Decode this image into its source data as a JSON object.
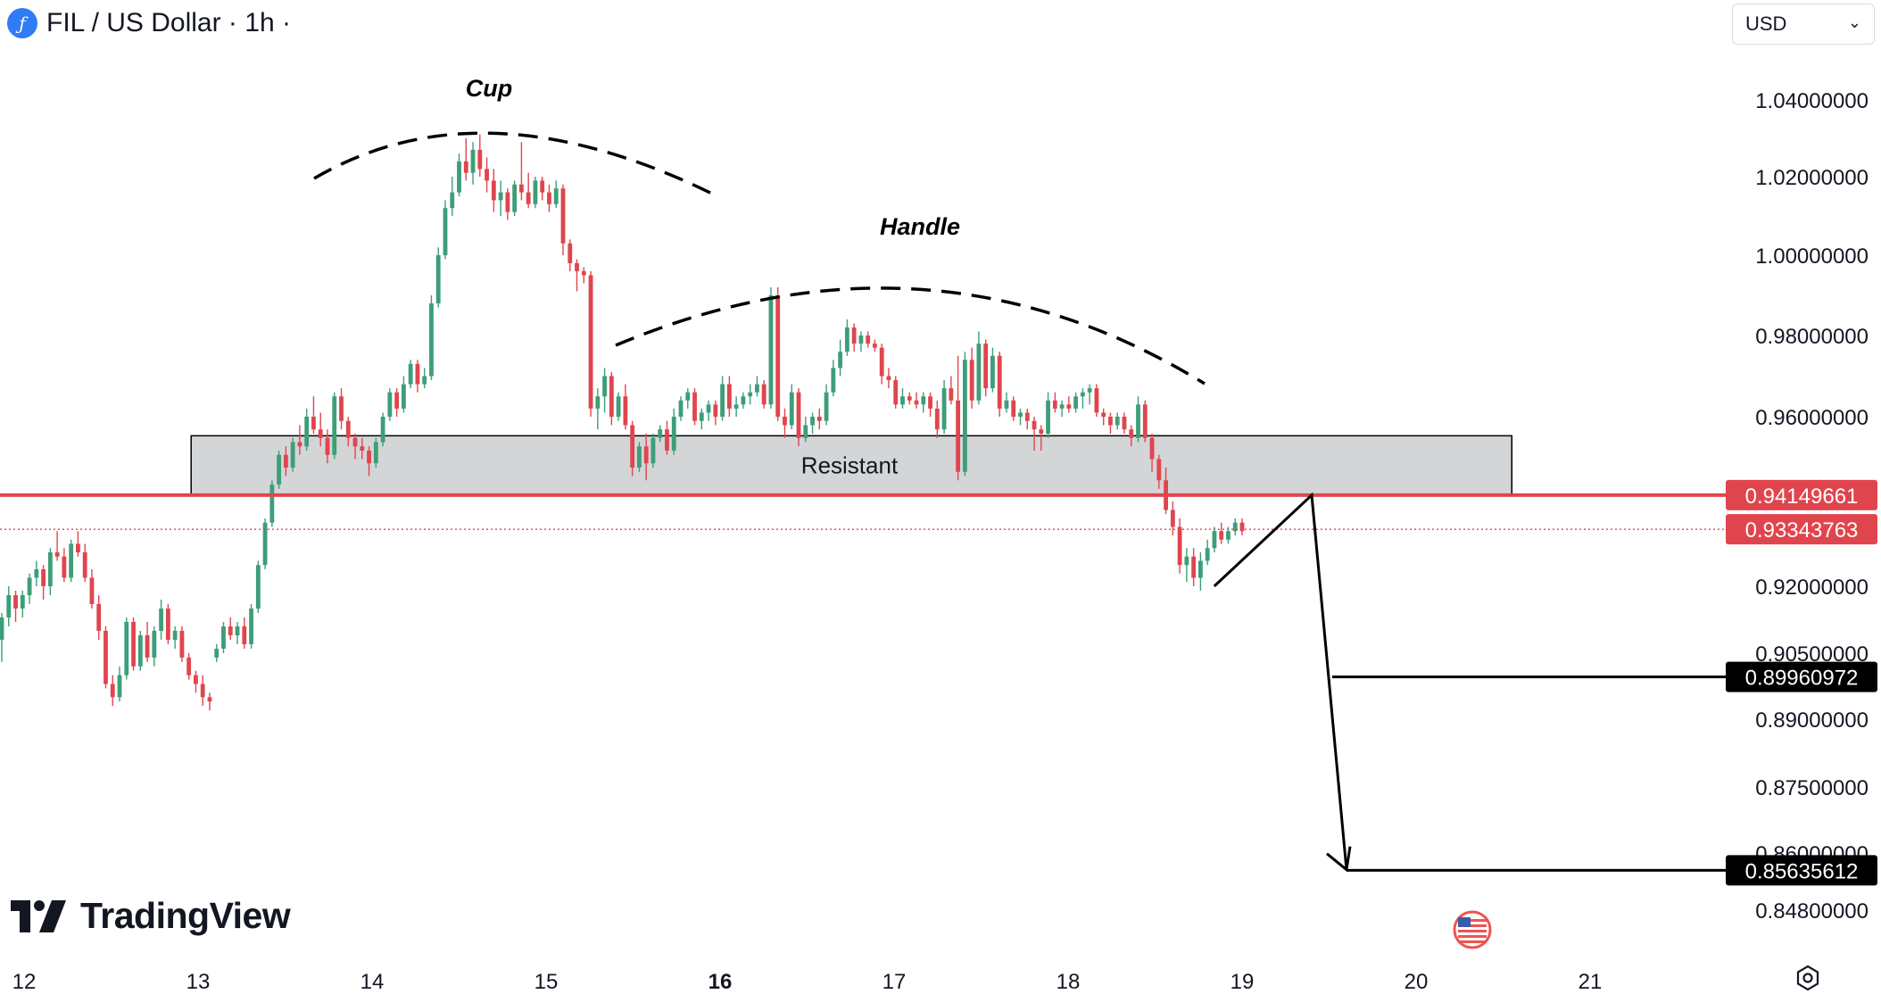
{
  "header": {
    "coin_icon": "filecoin-icon",
    "coin_glyph": "ƒ",
    "title": "FIL / US Dollar · 1h ·"
  },
  "currency_select": {
    "value": "USD"
  },
  "brand": {
    "logo": "tradingview-logo",
    "text": "TradingView"
  },
  "settings": {
    "icon": "gear-icon"
  },
  "colors": {
    "up": "#26a69a",
    "up_body": "#3d9e78",
    "down": "#ef5350",
    "down_body": "#e0454d",
    "price_line": "#e0454d",
    "zone_fill": "#d4d5d7",
    "annotation": "#000000"
  },
  "chart_data": {
    "type": "candlestick",
    "title": "FIL / US Dollar · 1h",
    "x_axis": {
      "labels": [
        "12",
        "13",
        "14",
        "15",
        "16",
        "17",
        "18",
        "19",
        "20",
        "21"
      ],
      "bold": [
        "16"
      ]
    },
    "y_axis": {
      "labels": [
        "1.04000000",
        "1.02000000",
        "1.00000000",
        "0.98000000",
        "0.96000000",
        "0.92000000",
        "0.90500000",
        "0.89000000",
        "0.87500000",
        "0.86000000",
        "0.84800000"
      ],
      "values": [
        1.04,
        1.02,
        1.0,
        0.98,
        0.96,
        0.92,
        0.905,
        0.89,
        0.875,
        0.86,
        0.848
      ]
    },
    "price_tags": [
      {
        "value": "0.94149661",
        "style": "red"
      },
      {
        "value": "0.93343763",
        "style": "red"
      },
      {
        "value": "0.89960972",
        "style": "black"
      },
      {
        "value": "0.85635612",
        "style": "black"
      }
    ],
    "annotations": {
      "cup": "Cup",
      "handle": "Handle",
      "resistance_zone": {
        "label": "Resistant",
        "top": 0.9555,
        "bottom": 0.9415,
        "from_day": 12.96,
        "to_day": 20.55
      },
      "target_1": 0.89960972,
      "target_2": 0.85635612,
      "projection_path": [
        [
          18.84,
          0.92
        ],
        [
          19.4,
          0.9415
        ],
        [
          19.6,
          0.8565
        ]
      ]
    },
    "candles": [
      [
        0.908,
        0.914,
        0.903,
        0.913
      ],
      [
        0.913,
        0.92,
        0.911,
        0.918
      ],
      [
        0.918,
        0.919,
        0.912,
        0.915
      ],
      [
        0.915,
        0.919,
        0.913,
        0.918
      ],
      [
        0.918,
        0.923,
        0.916,
        0.922
      ],
      [
        0.922,
        0.926,
        0.92,
        0.924
      ],
      [
        0.924,
        0.925,
        0.917,
        0.92
      ],
      [
        0.92,
        0.929,
        0.918,
        0.928
      ],
      [
        0.928,
        0.933,
        0.926,
        0.927
      ],
      [
        0.927,
        0.929,
        0.921,
        0.922
      ],
      [
        0.922,
        0.931,
        0.921,
        0.93
      ],
      [
        0.93,
        0.933,
        0.927,
        0.928
      ],
      [
        0.928,
        0.93,
        0.921,
        0.922
      ],
      [
        0.922,
        0.924,
        0.915,
        0.916
      ],
      [
        0.916,
        0.918,
        0.908,
        0.91
      ],
      [
        0.91,
        0.911,
        0.897,
        0.898
      ],
      [
        0.898,
        0.9,
        0.893,
        0.895
      ],
      [
        0.895,
        0.902,
        0.894,
        0.9
      ],
      [
        0.9,
        0.913,
        0.899,
        0.912
      ],
      [
        0.912,
        0.913,
        0.901,
        0.902
      ],
      [
        0.902,
        0.91,
        0.901,
        0.909
      ],
      [
        0.909,
        0.912,
        0.903,
        0.904
      ],
      [
        0.904,
        0.911,
        0.902,
        0.91
      ],
      [
        0.91,
        0.917,
        0.908,
        0.915
      ],
      [
        0.915,
        0.916,
        0.907,
        0.908
      ],
      [
        0.908,
        0.911,
        0.906,
        0.91
      ],
      [
        0.91,
        0.911,
        0.903,
        0.904
      ],
      [
        0.904,
        0.905,
        0.899,
        0.9
      ],
      [
        0.9,
        0.901,
        0.896,
        0.898
      ],
      [
        0.898,
        0.9,
        0.893,
        0.895
      ],
      [
        0.895,
        0.896,
        0.892,
        0.894
      ],
      [
        0.904,
        0.907,
        0.903,
        0.906
      ],
      [
        0.906,
        0.912,
        0.905,
        0.911
      ],
      [
        0.911,
        0.913,
        0.908,
        0.909
      ],
      [
        0.909,
        0.912,
        0.907,
        0.911
      ],
      [
        0.911,
        0.913,
        0.906,
        0.907
      ],
      [
        0.907,
        0.916,
        0.906,
        0.915
      ],
      [
        0.915,
        0.926,
        0.914,
        0.925
      ],
      [
        0.925,
        0.936,
        0.924,
        0.935
      ],
      [
        0.935,
        0.945,
        0.934,
        0.944
      ],
      [
        0.944,
        0.952,
        0.943,
        0.951
      ],
      [
        0.951,
        0.953,
        0.946,
        0.948
      ],
      [
        0.948,
        0.955,
        0.947,
        0.954
      ],
      [
        0.954,
        0.958,
        0.951,
        0.953
      ],
      [
        0.953,
        0.962,
        0.952,
        0.96
      ],
      [
        0.96,
        0.965,
        0.956,
        0.957
      ],
      [
        0.957,
        0.961,
        0.953,
        0.955
      ],
      [
        0.955,
        0.957,
        0.949,
        0.951
      ],
      [
        0.951,
        0.966,
        0.95,
        0.965
      ],
      [
        0.965,
        0.967,
        0.957,
        0.959
      ],
      [
        0.959,
        0.96,
        0.953,
        0.955
      ],
      [
        0.955,
        0.956,
        0.95,
        0.953
      ],
      [
        0.953,
        0.955,
        0.95,
        0.952
      ],
      [
        0.952,
        0.953,
        0.946,
        0.949
      ],
      [
        0.949,
        0.955,
        0.948,
        0.954
      ],
      [
        0.954,
        0.961,
        0.953,
        0.96
      ],
      [
        0.96,
        0.967,
        0.959,
        0.966
      ],
      [
        0.966,
        0.967,
        0.96,
        0.962
      ],
      [
        0.962,
        0.97,
        0.961,
        0.968
      ],
      [
        0.968,
        0.974,
        0.967,
        0.973
      ],
      [
        0.973,
        0.974,
        0.966,
        0.968
      ],
      [
        0.968,
        0.972,
        0.967,
        0.97
      ],
      [
        0.97,
        0.99,
        0.969,
        0.988
      ],
      [
        0.988,
        1.002,
        0.987,
        1.0
      ],
      [
        1.0,
        1.014,
        0.999,
        1.012
      ],
      [
        1.012,
        1.02,
        1.01,
        1.016
      ],
      [
        1.016,
        1.026,
        1.015,
        1.024
      ],
      [
        1.024,
        1.03,
        1.019,
        1.021
      ],
      [
        1.021,
        1.029,
        1.018,
        1.027
      ],
      [
        1.027,
        1.031,
        1.02,
        1.022
      ],
      [
        1.022,
        1.025,
        1.016,
        1.019
      ],
      [
        1.019,
        1.022,
        1.011,
        1.014
      ],
      [
        1.014,
        1.019,
        1.01,
        1.016
      ],
      [
        1.016,
        1.017,
        1.009,
        1.011
      ],
      [
        1.011,
        1.019,
        1.01,
        1.018
      ],
      [
        1.018,
        1.029,
        1.014,
        1.016
      ],
      [
        1.016,
        1.021,
        1.012,
        1.013
      ],
      [
        1.013,
        1.02,
        1.012,
        1.019
      ],
      [
        1.019,
        1.02,
        1.014,
        1.016
      ],
      [
        1.016,
        1.018,
        1.011,
        1.013
      ],
      [
        1.013,
        1.019,
        1.012,
        1.017
      ],
      [
        1.017,
        1.018,
        1.0,
        1.003
      ],
      [
        1.003,
        1.004,
        0.996,
        0.998
      ],
      [
        0.998,
        0.999,
        0.991,
        0.996
      ],
      [
        0.996,
        0.997,
        0.993,
        0.995
      ],
      [
        0.995,
        0.996,
        0.96,
        0.962
      ],
      [
        0.962,
        0.967,
        0.957,
        0.965
      ],
      [
        0.965,
        0.972,
        0.961,
        0.97
      ],
      [
        0.97,
        0.971,
        0.958,
        0.96
      ],
      [
        0.96,
        0.966,
        0.959,
        0.965
      ],
      [
        0.965,
        0.968,
        0.957,
        0.958
      ],
      [
        0.958,
        0.959,
        0.946,
        0.948
      ],
      [
        0.948,
        0.954,
        0.947,
        0.953
      ],
      [
        0.953,
        0.956,
        0.945,
        0.949
      ],
      [
        0.949,
        0.956,
        0.948,
        0.955
      ],
      [
        0.955,
        0.958,
        0.954,
        0.957
      ],
      [
        0.957,
        0.959,
        0.951,
        0.952
      ],
      [
        0.952,
        0.962,
        0.951,
        0.96
      ],
      [
        0.96,
        0.965,
        0.959,
        0.964
      ],
      [
        0.964,
        0.967,
        0.962,
        0.966
      ],
      [
        0.966,
        0.967,
        0.958,
        0.959
      ],
      [
        0.959,
        0.962,
        0.957,
        0.961
      ],
      [
        0.961,
        0.964,
        0.959,
        0.963
      ],
      [
        0.963,
        0.964,
        0.958,
        0.96
      ],
      [
        0.96,
        0.97,
        0.959,
        0.968
      ],
      [
        0.968,
        0.97,
        0.96,
        0.962
      ],
      [
        0.962,
        0.965,
        0.96,
        0.963
      ],
      [
        0.963,
        0.966,
        0.962,
        0.965
      ],
      [
        0.965,
        0.968,
        0.963,
        0.966
      ],
      [
        0.966,
        0.97,
        0.965,
        0.968
      ],
      [
        0.968,
        0.969,
        0.962,
        0.963
      ],
      [
        0.963,
        0.992,
        0.962,
        0.99
      ],
      [
        0.99,
        0.992,
        0.959,
        0.96
      ],
      [
        0.96,
        0.962,
        0.955,
        0.958
      ],
      [
        0.958,
        0.968,
        0.957,
        0.966
      ],
      [
        0.966,
        0.967,
        0.953,
        0.955
      ],
      [
        0.955,
        0.96,
        0.954,
        0.958
      ],
      [
        0.958,
        0.961,
        0.956,
        0.96
      ],
      [
        0.96,
        0.962,
        0.957,
        0.959
      ],
      [
        0.959,
        0.968,
        0.958,
        0.966
      ],
      [
        0.966,
        0.974,
        0.965,
        0.972
      ],
      [
        0.972,
        0.979,
        0.97,
        0.976
      ],
      [
        0.976,
        0.984,
        0.975,
        0.982
      ],
      [
        0.982,
        0.983,
        0.976,
        0.978
      ],
      [
        0.978,
        0.981,
        0.976,
        0.98
      ],
      [
        0.98,
        0.981,
        0.977,
        0.978
      ],
      [
        0.978,
        0.979,
        0.976,
        0.977
      ],
      [
        0.977,
        0.978,
        0.968,
        0.97
      ],
      [
        0.97,
        0.972,
        0.967,
        0.969
      ],
      [
        0.969,
        0.97,
        0.962,
        0.963
      ],
      [
        0.963,
        0.967,
        0.962,
        0.965
      ],
      [
        0.965,
        0.966,
        0.963,
        0.964
      ],
      [
        0.964,
        0.966,
        0.962,
        0.963
      ],
      [
        0.963,
        0.966,
        0.961,
        0.965
      ],
      [
        0.965,
        0.966,
        0.96,
        0.962
      ],
      [
        0.962,
        0.964,
        0.955,
        0.957
      ],
      [
        0.957,
        0.969,
        0.956,
        0.967
      ],
      [
        0.967,
        0.97,
        0.963,
        0.964
      ],
      [
        0.964,
        0.975,
        0.945,
        0.947
      ],
      [
        0.947,
        0.976,
        0.946,
        0.974
      ],
      [
        0.974,
        0.977,
        0.962,
        0.964
      ],
      [
        0.964,
        0.981,
        0.963,
        0.978
      ],
      [
        0.978,
        0.979,
        0.965,
        0.967
      ],
      [
        0.967,
        0.977,
        0.966,
        0.975
      ],
      [
        0.975,
        0.976,
        0.96,
        0.962
      ],
      [
        0.962,
        0.966,
        0.961,
        0.964
      ],
      [
        0.964,
        0.965,
        0.959,
        0.96
      ],
      [
        0.96,
        0.962,
        0.958,
        0.961
      ],
      [
        0.961,
        0.962,
        0.957,
        0.959
      ],
      [
        0.959,
        0.96,
        0.952,
        0.957
      ],
      [
        0.957,
        0.958,
        0.952,
        0.956
      ],
      [
        0.956,
        0.966,
        0.955,
        0.964
      ],
      [
        0.964,
        0.966,
        0.961,
        0.962
      ],
      [
        0.962,
        0.964,
        0.96,
        0.963
      ],
      [
        0.963,
        0.965,
        0.961,
        0.962
      ],
      [
        0.962,
        0.966,
        0.961,
        0.965
      ],
      [
        0.965,
        0.967,
        0.962,
        0.966
      ],
      [
        0.966,
        0.968,
        0.963,
        0.967
      ],
      [
        0.967,
        0.968,
        0.96,
        0.961
      ],
      [
        0.961,
        0.962,
        0.958,
        0.96
      ],
      [
        0.96,
        0.961,
        0.956,
        0.958
      ],
      [
        0.958,
        0.961,
        0.957,
        0.96
      ],
      [
        0.96,
        0.961,
        0.956,
        0.957
      ],
      [
        0.957,
        0.958,
        0.953,
        0.955
      ],
      [
        0.955,
        0.965,
        0.954,
        0.963
      ],
      [
        0.963,
        0.964,
        0.954,
        0.955
      ],
      [
        0.955,
        0.956,
        0.947,
        0.95
      ],
      [
        0.95,
        0.951,
        0.943,
        0.945
      ],
      [
        0.945,
        0.948,
        0.937,
        0.938
      ],
      [
        0.938,
        0.94,
        0.932,
        0.934
      ],
      [
        0.934,
        0.936,
        0.923,
        0.925
      ],
      [
        0.925,
        0.929,
        0.921,
        0.927
      ],
      [
        0.927,
        0.929,
        0.92,
        0.922
      ],
      [
        0.922,
        0.928,
        0.919,
        0.926
      ],
      [
        0.926,
        0.931,
        0.925,
        0.929
      ],
      [
        0.929,
        0.934,
        0.928,
        0.933
      ],
      [
        0.933,
        0.935,
        0.93,
        0.931
      ],
      [
        0.931,
        0.934,
        0.93,
        0.933
      ],
      [
        0.933,
        0.936,
        0.932,
        0.935
      ],
      [
        0.935,
        0.936,
        0.932,
        0.933
      ]
    ]
  }
}
